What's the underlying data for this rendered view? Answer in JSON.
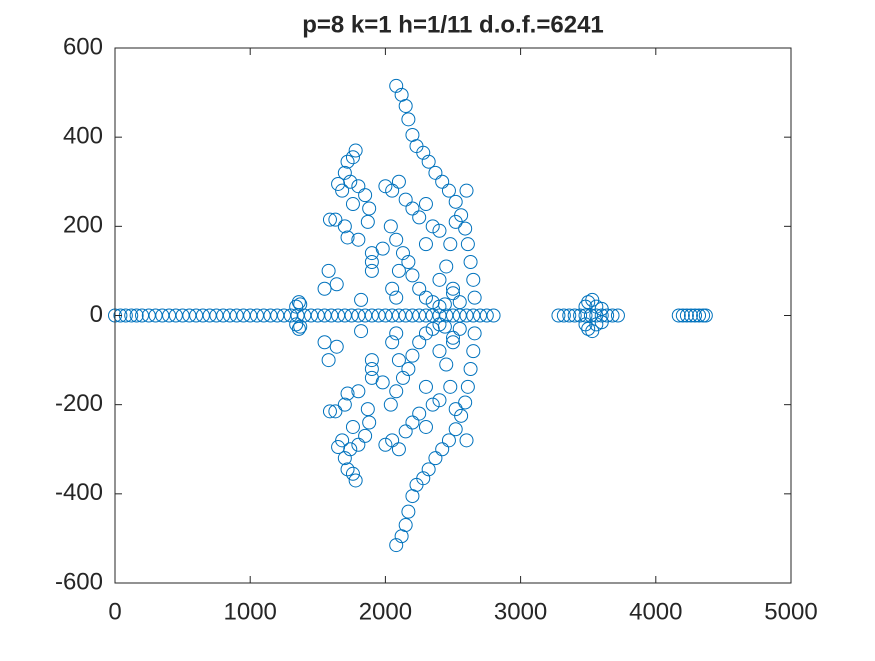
{
  "chart_data": {
    "type": "scatter",
    "title": "p=8 k=1 h=1/11 d.o.f.=6241",
    "color": "#0072bd",
    "xlim": [
      0,
      5000
    ],
    "xticks": [
      0,
      1000,
      2000,
      3000,
      4000,
      5000
    ],
    "ylim": [
      -600,
      600
    ],
    "yticks": [
      -600,
      -400,
      -200,
      0,
      200,
      400,
      600
    ],
    "x": [
      0,
      40,
      80,
      120,
      160,
      200,
      250,
      300,
      350,
      400,
      450,
      500,
      550,
      600,
      650,
      700,
      750,
      800,
      850,
      900,
      950,
      1000,
      1050,
      1100,
      1150,
      1200,
      1250,
      1300,
      1350,
      1400,
      1450,
      1500,
      1550,
      1600,
      1650,
      1700,
      1750,
      1800,
      1850,
      1900,
      1950,
      2000,
      2050,
      2100,
      2150,
      2200,
      2250,
      2300,
      2350,
      2400,
      2450,
      2500,
      2550,
      2600,
      2650,
      2700,
      2750,
      2800,
      3280,
      3320,
      3360,
      3400,
      3440,
      3480,
      3520,
      3560,
      3600,
      3640,
      3680,
      3720,
      4170,
      4200,
      4230,
      4260,
      4290,
      4320,
      4350,
      4370,
      2080,
      2120,
      2150,
      2170,
      2200,
      2230,
      2280,
      2320,
      2370,
      2420,
      2470,
      2520,
      2560,
      2590,
      2610,
      2630,
      2650,
      2660,
      1780,
      1760,
      1720,
      1700,
      1740,
      1800,
      1650,
      1680,
      1850,
      1760,
      1880,
      1870,
      1700,
      1630,
      1590,
      1800,
      1720,
      1580,
      1640,
      1550,
      1900,
      1900,
      1900,
      1980,
      2000,
      2050,
      2100,
      2150,
      2200,
      2250,
      2300,
      2040,
      2080,
      2130,
      2170,
      2200,
      2250,
      2300,
      2350,
      2400,
      2400,
      2450,
      2500,
      2550,
      2300,
      2400,
      2480,
      2520,
      2350,
      2600,
      2050,
      2080,
      2100,
      2440,
      2500,
      1370,
      1340,
      1360,
      1820,
      3500,
      3530,
      3560,
      3600,
      3480,
      2080,
      2120,
      2150,
      2170,
      2200,
      2230,
      2280,
      2320,
      2370,
      2420,
      2470,
      2520,
      2560,
      2590,
      2610,
      2630,
      2650,
      2660,
      1780,
      1760,
      1720,
      1700,
      1740,
      1800,
      1650,
      1680,
      1850,
      1760,
      1880,
      1870,
      1700,
      1630,
      1590,
      1800,
      1720,
      1580,
      1640,
      1550,
      1900,
      1900,
      1900,
      1980,
      2000,
      2050,
      2100,
      2150,
      2200,
      2250,
      2300,
      2040,
      2080,
      2130,
      2170,
      2200,
      2250,
      2300,
      2350,
      2400,
      2400,
      2450,
      2500,
      2550,
      2300,
      2400,
      2480,
      2520,
      2350,
      2600,
      2050,
      2080,
      2100,
      2440,
      2500,
      1370,
      1340,
      1360,
      1820,
      3500,
      3530,
      3560,
      3600,
      3480
    ],
    "values": [
      0,
      0,
      0,
      0,
      0,
      0,
      0,
      0,
      0,
      0,
      0,
      0,
      0,
      0,
      0,
      0,
      0,
      0,
      0,
      0,
      0,
      0,
      0,
      0,
      0,
      0,
      0,
      0,
      0,
      0,
      0,
      0,
      0,
      0,
      0,
      0,
      0,
      0,
      0,
      0,
      0,
      0,
      0,
      0,
      0,
      0,
      0,
      0,
      0,
      0,
      0,
      0,
      0,
      0,
      0,
      0,
      0,
      0,
      0,
      0,
      0,
      0,
      0,
      0,
      0,
      0,
      0,
      0,
      0,
      0,
      0,
      0,
      0,
      0,
      0,
      0,
      0,
      0,
      515,
      495,
      470,
      440,
      405,
      380,
      365,
      345,
      320,
      300,
      280,
      255,
      225,
      195,
      160,
      120,
      80,
      40,
      370,
      355,
      345,
      320,
      300,
      290,
      295,
      280,
      270,
      250,
      240,
      210,
      200,
      215,
      215,
      170,
      175,
      100,
      70,
      60,
      140,
      120,
      100,
      150,
      290,
      280,
      300,
      260,
      240,
      220,
      250,
      200,
      170,
      140,
      120,
      90,
      60,
      40,
      30,
      20,
      80,
      110,
      60,
      30,
      160,
      190,
      160,
      210,
      200,
      280,
      60,
      40,
      100,
      25,
      50,
      25,
      20,
      30,
      35,
      30,
      35,
      20,
      15,
      20,
      -515,
      -495,
      -470,
      -440,
      -405,
      -380,
      -365,
      -345,
      -320,
      -300,
      -280,
      -255,
      -225,
      -195,
      -160,
      -120,
      -80,
      -40,
      -370,
      -355,
      -345,
      -320,
      -300,
      -290,
      -295,
      -280,
      -270,
      -250,
      -240,
      -210,
      -200,
      -215,
      -215,
      -170,
      -175,
      -100,
      -70,
      -60,
      -140,
      -120,
      -100,
      -150,
      -290,
      -280,
      -300,
      -260,
      -240,
      -220,
      -250,
      -200,
      -170,
      -140,
      -120,
      -90,
      -60,
      -40,
      -30,
      -20,
      -80,
      -110,
      -60,
      -30,
      -160,
      -190,
      -160,
      -210,
      -200,
      -280,
      -60,
      -40,
      -100,
      -25,
      -50,
      -25,
      -20,
      -30,
      -35,
      -30,
      -35,
      -20,
      -15,
      -20
    ]
  }
}
